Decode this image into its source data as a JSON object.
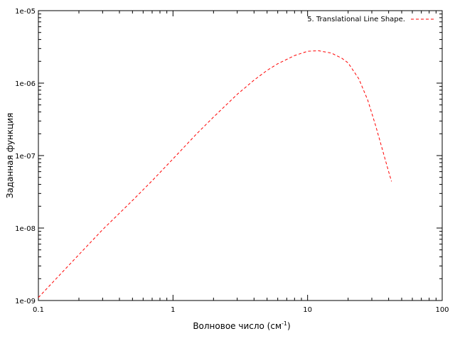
{
  "chart_data": {
    "type": "line",
    "title": "",
    "xlabel": "Волновое число (см",
    "xlabel_sup": "-1",
    "xlabel_close": ")",
    "ylabel": "Заданная функция",
    "xscale": "log",
    "yscale": "log",
    "xlim": [
      0.1,
      100
    ],
    "ylim": [
      1e-09,
      1e-05
    ],
    "grid": false,
    "legend_position": "top-right",
    "x_ticks": [
      "0.1",
      "1",
      "10",
      "100"
    ],
    "y_ticks": [
      "1e-09",
      "1e-08",
      "1e-07",
      "1e-06",
      "1e-05"
    ],
    "series": [
      {
        "name": "5. Translational Line Shape.",
        "color": "#ff0000",
        "dash": "dashed",
        "x": [
          0.1,
          0.2,
          0.3,
          0.5,
          0.7,
          1.0,
          1.5,
          2.0,
          3.0,
          4.0,
          5.0,
          6.0,
          8.0,
          10.0,
          12.0,
          15.0,
          18.0,
          20.0,
          24.0,
          28.0,
          32.0,
          36.0,
          40.0,
          42.0
        ],
        "y": [
          1.1e-09,
          4.3e-09,
          9.5e-09,
          2.4e-08,
          4.5e-08,
          9e-08,
          2e-07,
          3.4e-07,
          7e-07,
          1.1e-06,
          1.5e-06,
          1.85e-06,
          2.4e-06,
          2.75e-06,
          2.8e-06,
          2.6e-06,
          2.2e-06,
          1.9e-06,
          1.15e-06,
          5.8e-07,
          2.6e-07,
          1.2e-07,
          6e-08,
          4.4e-08
        ]
      }
    ]
  }
}
